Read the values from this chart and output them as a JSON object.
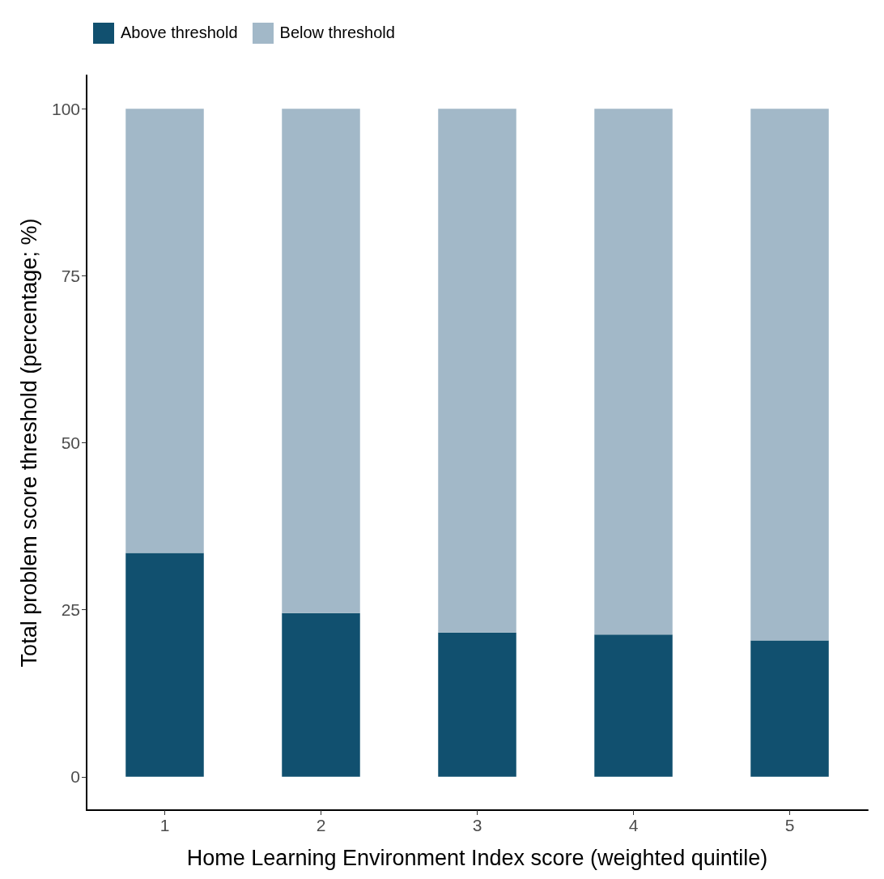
{
  "chart_data": {
    "type": "bar",
    "stacked": true,
    "xlabel": "Home Learning Environment Index score (weighted quintile)",
    "ylabel": "Total problem score threshold (percentage; %)",
    "categories": [
      "1",
      "2",
      "3",
      "4",
      "5"
    ],
    "series": [
      {
        "name": "Above threshold",
        "color": "#11506f",
        "values": [
          33.5,
          24.5,
          21.6,
          21.3,
          20.4
        ]
      },
      {
        "name": "Below threshold",
        "color": "#a2b8c8",
        "values": [
          66.5,
          75.5,
          78.4,
          78.7,
          79.6
        ]
      }
    ],
    "ylim": [
      -5,
      105
    ],
    "yticks": [
      0,
      25,
      50,
      75,
      100
    ],
    "grid": false,
    "legend": "top left"
  }
}
